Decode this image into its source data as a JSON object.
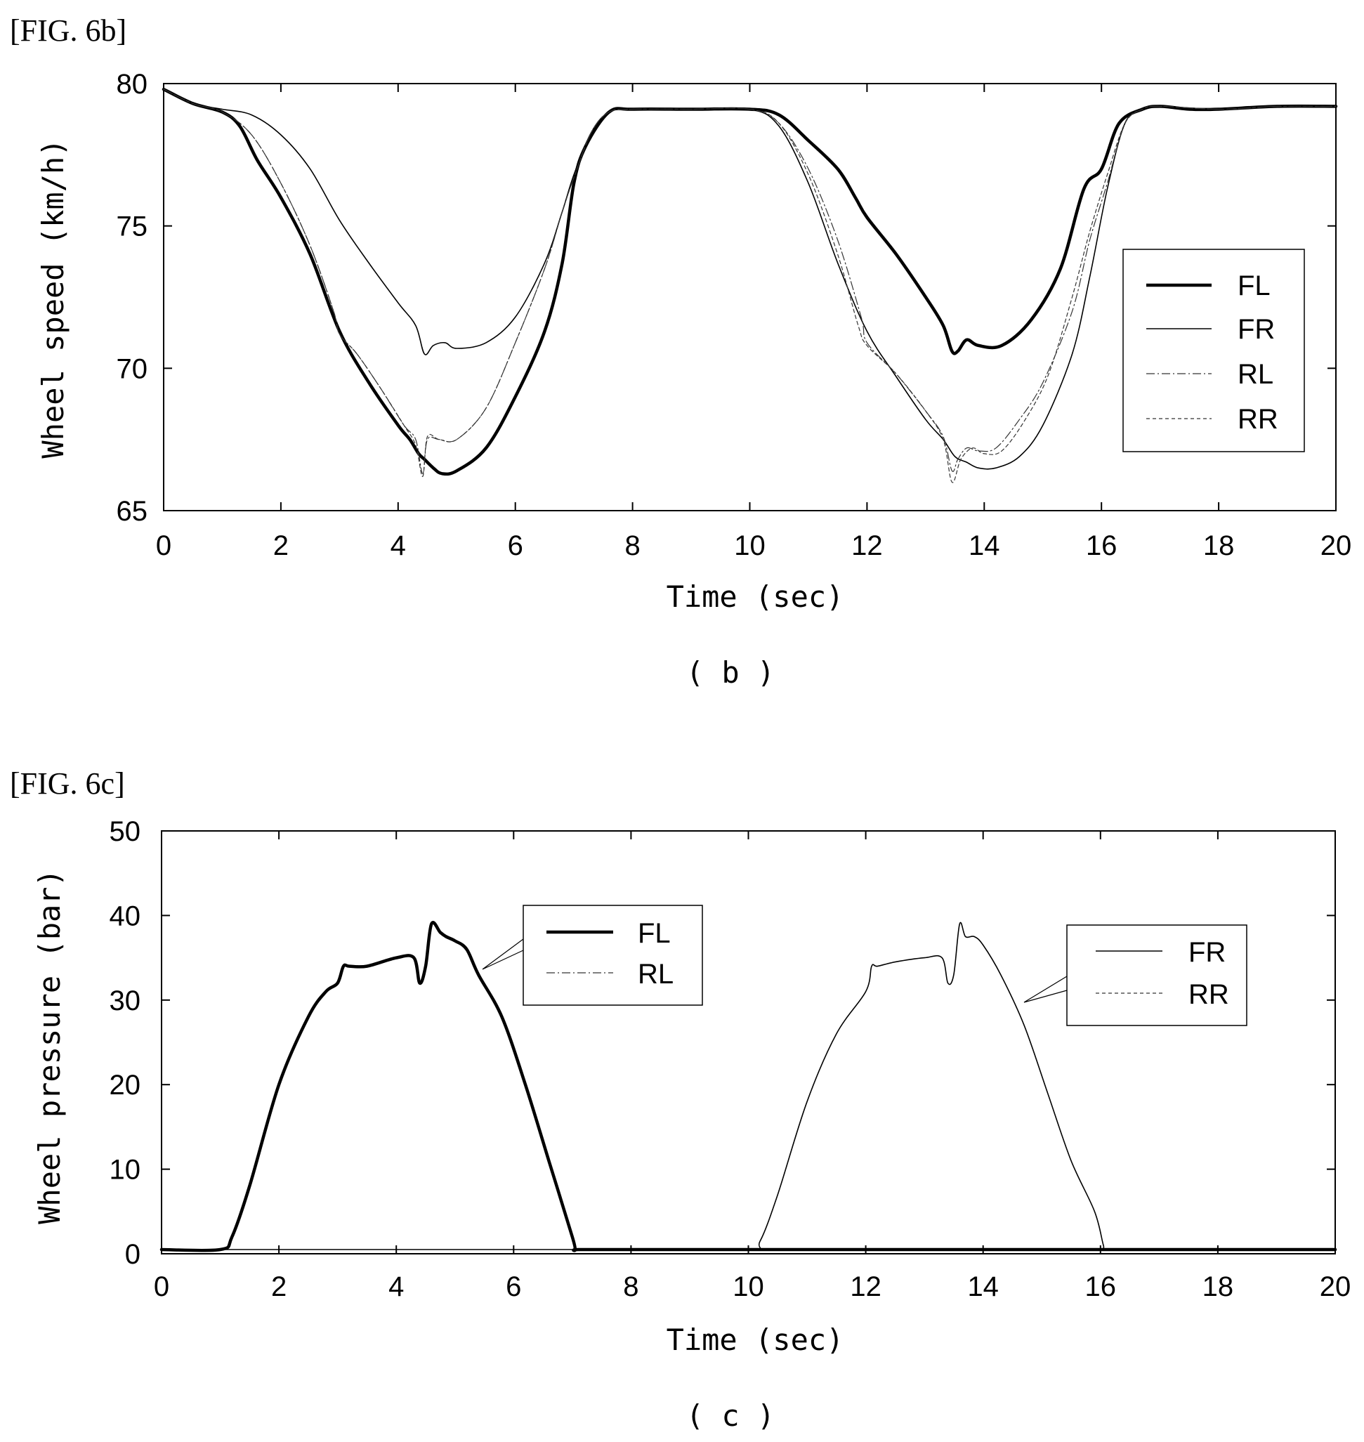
{
  "chart_data": [
    {
      "type": "line",
      "figure_label": "[FIG. 6b]",
      "caption": "( b )",
      "xlabel": "Time (sec)",
      "ylabel": "Wheel speed (km/h)",
      "xlim": [
        0,
        20
      ],
      "ylim": [
        65,
        80
      ],
      "xticks": [
        "0",
        "2",
        "4",
        "6",
        "8",
        "10",
        "12",
        "14",
        "16",
        "18",
        "20"
      ],
      "yticks": [
        "65",
        "70",
        "75",
        "80"
      ],
      "grid": false,
      "legend_position": "right",
      "series": [
        {
          "name": "FL",
          "style": "thick",
          "x": [
            0,
            0.5,
            1,
            1.3,
            1.6,
            2,
            2.5,
            3,
            3.5,
            4,
            4.2,
            4.35,
            4.45,
            4.6,
            4.75,
            5,
            5.5,
            6,
            6.5,
            6.8,
            7.0,
            7.2,
            7.6,
            8,
            9,
            10,
            10.5,
            11,
            11.5,
            11.8,
            12,
            12.5,
            13,
            13.3,
            13.45,
            13.55,
            13.7,
            13.9,
            14.3,
            14.8,
            15.3,
            15.7,
            16,
            16.3,
            16.7,
            17,
            17.5,
            18,
            19,
            20
          ],
          "y": [
            79.8,
            79.3,
            79.0,
            78.5,
            77.3,
            76.0,
            74.0,
            71.3,
            69.5,
            68.0,
            67.5,
            67.0,
            66.8,
            66.5,
            66.3,
            66.4,
            67.2,
            69.0,
            71.3,
            73.7,
            76.5,
            77.8,
            79.0,
            79.1,
            79.1,
            79.1,
            78.9,
            78.0,
            77.0,
            76.0,
            75.3,
            74.0,
            72.5,
            71.5,
            70.6,
            70.6,
            71.0,
            70.8,
            70.8,
            71.7,
            73.5,
            76.3,
            77.0,
            78.6,
            79.1,
            79.2,
            79.1,
            79.1,
            79.2,
            79.2
          ]
        },
        {
          "name": "FR",
          "style": "thin",
          "x": [
            0,
            0.5,
            1,
            1.5,
            2,
            2.5,
            3,
            3.5,
            4,
            4.3,
            4.45,
            4.6,
            4.8,
            5,
            5.5,
            6,
            6.5,
            6.8,
            7,
            7.3,
            7.6,
            8,
            9,
            10,
            10.5,
            11,
            11.5,
            12,
            12.5,
            13,
            13.3,
            13.5,
            13.7,
            13.9,
            14.2,
            14.6,
            15,
            15.5,
            15.8,
            16.1,
            16.4,
            16.7,
            17,
            18,
            19,
            20
          ],
          "y": [
            79.8,
            79.3,
            79.1,
            78.9,
            78.2,
            77.0,
            75.2,
            73.7,
            72.3,
            71.5,
            70.5,
            70.8,
            70.9,
            70.7,
            70.9,
            71.8,
            73.7,
            75.5,
            76.8,
            78.3,
            79.0,
            79.1,
            79.1,
            79.1,
            78.5,
            76.5,
            73.7,
            71.3,
            69.7,
            68.2,
            67.5,
            66.9,
            66.7,
            66.5,
            66.5,
            66.9,
            68.0,
            70.5,
            73.2,
            76.3,
            78.6,
            79.1,
            79.2,
            79.1,
            79.2,
            79.2
          ]
        },
        {
          "name": "RL",
          "style": "dashdot",
          "x": [
            0,
            0.5,
            1,
            1.5,
            2,
            2.5,
            2.9,
            3,
            3.3,
            3.7,
            4.1,
            4.3,
            4.42,
            4.5,
            4.7,
            5,
            5.5,
            6,
            6.5,
            6.8,
            7,
            7.3,
            7.6,
            8,
            9,
            10,
            10.5,
            11,
            11.5,
            11.9,
            12,
            12.5,
            13,
            13.3,
            13.45,
            13.55,
            13.7,
            13.9,
            14.2,
            14.6,
            15,
            15.5,
            15.8,
            16.1,
            16.4,
            16.7,
            17,
            18,
            19,
            20
          ],
          "y": [
            79.8,
            79.3,
            79.0,
            78.2,
            76.5,
            74.3,
            72.0,
            71.2,
            70.5,
            69.3,
            68.0,
            67.5,
            66.3,
            67.5,
            67.5,
            67.5,
            68.6,
            70.9,
            73.5,
            75.5,
            76.7,
            78.3,
            79.0,
            79.1,
            79.1,
            79.1,
            78.6,
            77.0,
            74.5,
            71.8,
            70.9,
            69.8,
            68.5,
            67.6,
            66.4,
            66.8,
            67.2,
            67.1,
            67.2,
            68.2,
            69.5,
            72.0,
            74.5,
            76.5,
            78.6,
            79.1,
            79.2,
            79.1,
            79.2,
            79.2
          ]
        },
        {
          "name": "RR",
          "style": "dashed",
          "x": [
            0,
            0.5,
            1,
            1.5,
            2,
            2.5,
            2.9,
            3,
            3.3,
            3.7,
            4.1,
            4.3,
            4.42,
            4.5,
            4.7,
            5,
            5.5,
            6,
            6.5,
            6.8,
            7,
            7.3,
            7.6,
            8,
            9,
            10,
            10.5,
            11,
            11.5,
            11.85,
            12,
            12.5,
            13,
            13.3,
            13.45,
            13.6,
            13.8,
            14,
            14.3,
            14.7,
            15.1,
            15.5,
            15.8,
            16.1,
            16.4,
            16.7,
            17,
            18,
            19,
            20
          ],
          "y": [
            79.8,
            79.3,
            79.0,
            78.2,
            76.5,
            74.3,
            72.0,
            71.2,
            70.5,
            69.3,
            68.0,
            67.3,
            66.2,
            67.6,
            67.5,
            67.5,
            68.6,
            70.9,
            73.5,
            75.5,
            76.7,
            78.3,
            79.0,
            79.1,
            79.1,
            79.1,
            78.6,
            76.8,
            74.0,
            71.5,
            70.8,
            69.8,
            68.5,
            67.5,
            66.0,
            66.8,
            67.2,
            67.0,
            67.1,
            68.2,
            69.8,
            72.5,
            74.8,
            76.8,
            78.6,
            79.1,
            79.2,
            79.1,
            79.2,
            79.2
          ]
        }
      ],
      "legend": [
        "FL",
        "FR",
        "RL",
        "RR"
      ]
    },
    {
      "type": "line",
      "figure_label": "[FIG. 6c]",
      "caption": "( c )",
      "xlabel": "Time (sec)",
      "ylabel": "Wheel pressure (bar)",
      "xlim": [
        0,
        20
      ],
      "ylim": [
        0,
        50
      ],
      "xticks": [
        "0",
        "2",
        "4",
        "6",
        "8",
        "10",
        "12",
        "14",
        "16",
        "18",
        "20"
      ],
      "yticks": [
        "0",
        "10",
        "20",
        "30",
        "40",
        "50"
      ],
      "grid": false,
      "series": [
        {
          "name": "FL",
          "style": "thick",
          "x": [
            0,
            1.0,
            1.2,
            1.5,
            2.0,
            2.5,
            2.8,
            3.0,
            3.1,
            3.2,
            3.5,
            4.0,
            4.3,
            4.4,
            4.5,
            4.6,
            4.75,
            4.85,
            5.0,
            5.2,
            5.4,
            5.8,
            6.2,
            6.6,
            7.0,
            7.05,
            7.1,
            8,
            10,
            12,
            14,
            16,
            18,
            20
          ],
          "y": [
            0.5,
            0.5,
            2,
            8,
            20,
            28,
            31,
            32,
            34,
            34,
            34,
            35,
            35,
            32,
            34,
            39,
            38,
            37.5,
            37,
            36,
            33,
            28,
            20,
            11,
            2,
            0.5,
            0.5,
            0.5,
            0.5,
            0.5,
            0.5,
            0.5,
            0.5,
            0.5
          ]
        },
        {
          "name": "FR",
          "style": "thin",
          "x": [
            0,
            2,
            4,
            6,
            8,
            10.0,
            10.2,
            10.5,
            11.0,
            11.5,
            12.0,
            12.1,
            12.2,
            12.5,
            13.0,
            13.3,
            13.4,
            13.5,
            13.6,
            13.7,
            13.85,
            14.0,
            14.3,
            14.7,
            15.1,
            15.5,
            15.9,
            16.05,
            16.1,
            17,
            18,
            20
          ],
          "y": [
            0.5,
            0.5,
            0.5,
            0.5,
            0.5,
            0.5,
            1.5,
            7,
            18,
            26,
            31,
            34,
            34,
            34.5,
            35,
            35,
            32,
            33,
            39,
            37.5,
            37.5,
            36.5,
            33,
            27,
            19,
            11,
            5,
            1,
            0.5,
            0.5,
            0.5,
            0.5
          ]
        }
      ],
      "legends": [
        {
          "entries": [
            "FL",
            "RL"
          ]
        },
        {
          "entries": [
            "FR",
            "RR"
          ]
        }
      ]
    }
  ]
}
